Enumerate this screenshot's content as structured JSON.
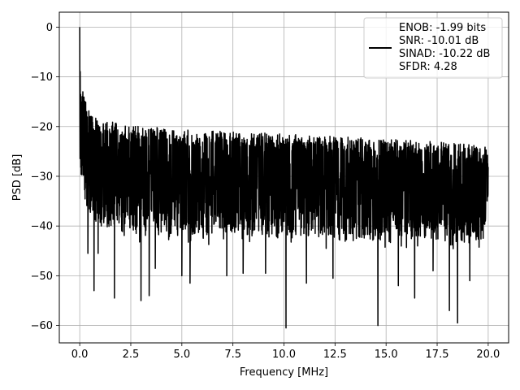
{
  "chart_data": {
    "type": "line",
    "xlabel": "Frequency [MHz]",
    "ylabel": "PSD [dB]",
    "xlim": [
      -1.0,
      21.0
    ],
    "ylim": [
      -63.5,
      3.0
    ],
    "xticks": [
      0.0,
      2.5,
      5.0,
      7.5,
      10.0,
      12.5,
      15.0,
      17.5,
      20.0
    ],
    "xtick_labels": [
      "0.0",
      "2.5",
      "5.0",
      "7.5",
      "10.0",
      "12.5",
      "15.0",
      "17.5",
      "20.0"
    ],
    "yticks": [
      0,
      -10,
      -20,
      -30,
      -40,
      -50,
      -60
    ],
    "ytick_labels": [
      "0",
      "−10",
      "−20",
      "−30",
      "−40",
      "−50",
      "−60"
    ],
    "grid": true,
    "legend_position": "top-right",
    "series": [
      {
        "name": "",
        "color": "#000000",
        "envelope": {
          "x": [
            0.0,
            0.05,
            0.1,
            0.2,
            0.3,
            0.5,
            1.0,
            2.0,
            3.0,
            5.0,
            7.5,
            10.0,
            12.5,
            15.0,
            17.5,
            20.0
          ],
          "upper": [
            0.0,
            -9.0,
            -12.0,
            -13.5,
            -15.0,
            -17.0,
            -18.5,
            -19.5,
            -20.0,
            -20.5,
            -21.0,
            -21.5,
            -22.0,
            -22.5,
            -23.0,
            -24.0
          ],
          "typical_low": [
            -25.0,
            -30.0,
            -33.0,
            -35.0,
            -36.0,
            -38.0,
            -40.0,
            -41.0,
            -42.0,
            -42.0,
            -42.0,
            -42.5,
            -43.0,
            -43.0,
            -43.0,
            -43.0
          ]
        },
        "deep_nulls": [
          {
            "x": 0.4,
            "y": -45.5
          },
          {
            "x": 0.7,
            "y": -53.0
          },
          {
            "x": 0.9,
            "y": -45.5
          },
          {
            "x": 1.7,
            "y": -54.5
          },
          {
            "x": 3.0,
            "y": -55.0
          },
          {
            "x": 3.4,
            "y": -54.0
          },
          {
            "x": 3.7,
            "y": -48.5
          },
          {
            "x": 5.0,
            "y": -50.0
          },
          {
            "x": 5.4,
            "y": -51.5
          },
          {
            "x": 7.2,
            "y": -50.0
          },
          {
            "x": 8.0,
            "y": -49.5
          },
          {
            "x": 9.1,
            "y": -49.5
          },
          {
            "x": 10.1,
            "y": -60.5
          },
          {
            "x": 11.1,
            "y": -51.5
          },
          {
            "x": 12.4,
            "y": -50.5
          },
          {
            "x": 14.6,
            "y": -60.0
          },
          {
            "x": 15.6,
            "y": -52.0
          },
          {
            "x": 16.4,
            "y": -54.5
          },
          {
            "x": 17.3,
            "y": -49.0
          },
          {
            "x": 18.1,
            "y": -57.0
          },
          {
            "x": 18.5,
            "y": -59.5
          },
          {
            "x": 19.1,
            "y": -51.0
          }
        ]
      }
    ],
    "legend": {
      "entries": [
        "ENOB: -1.99 bits",
        "SNR: -10.01 dB",
        "SINAD: -10.22 dB",
        "SFDR: 4.28"
      ]
    }
  }
}
